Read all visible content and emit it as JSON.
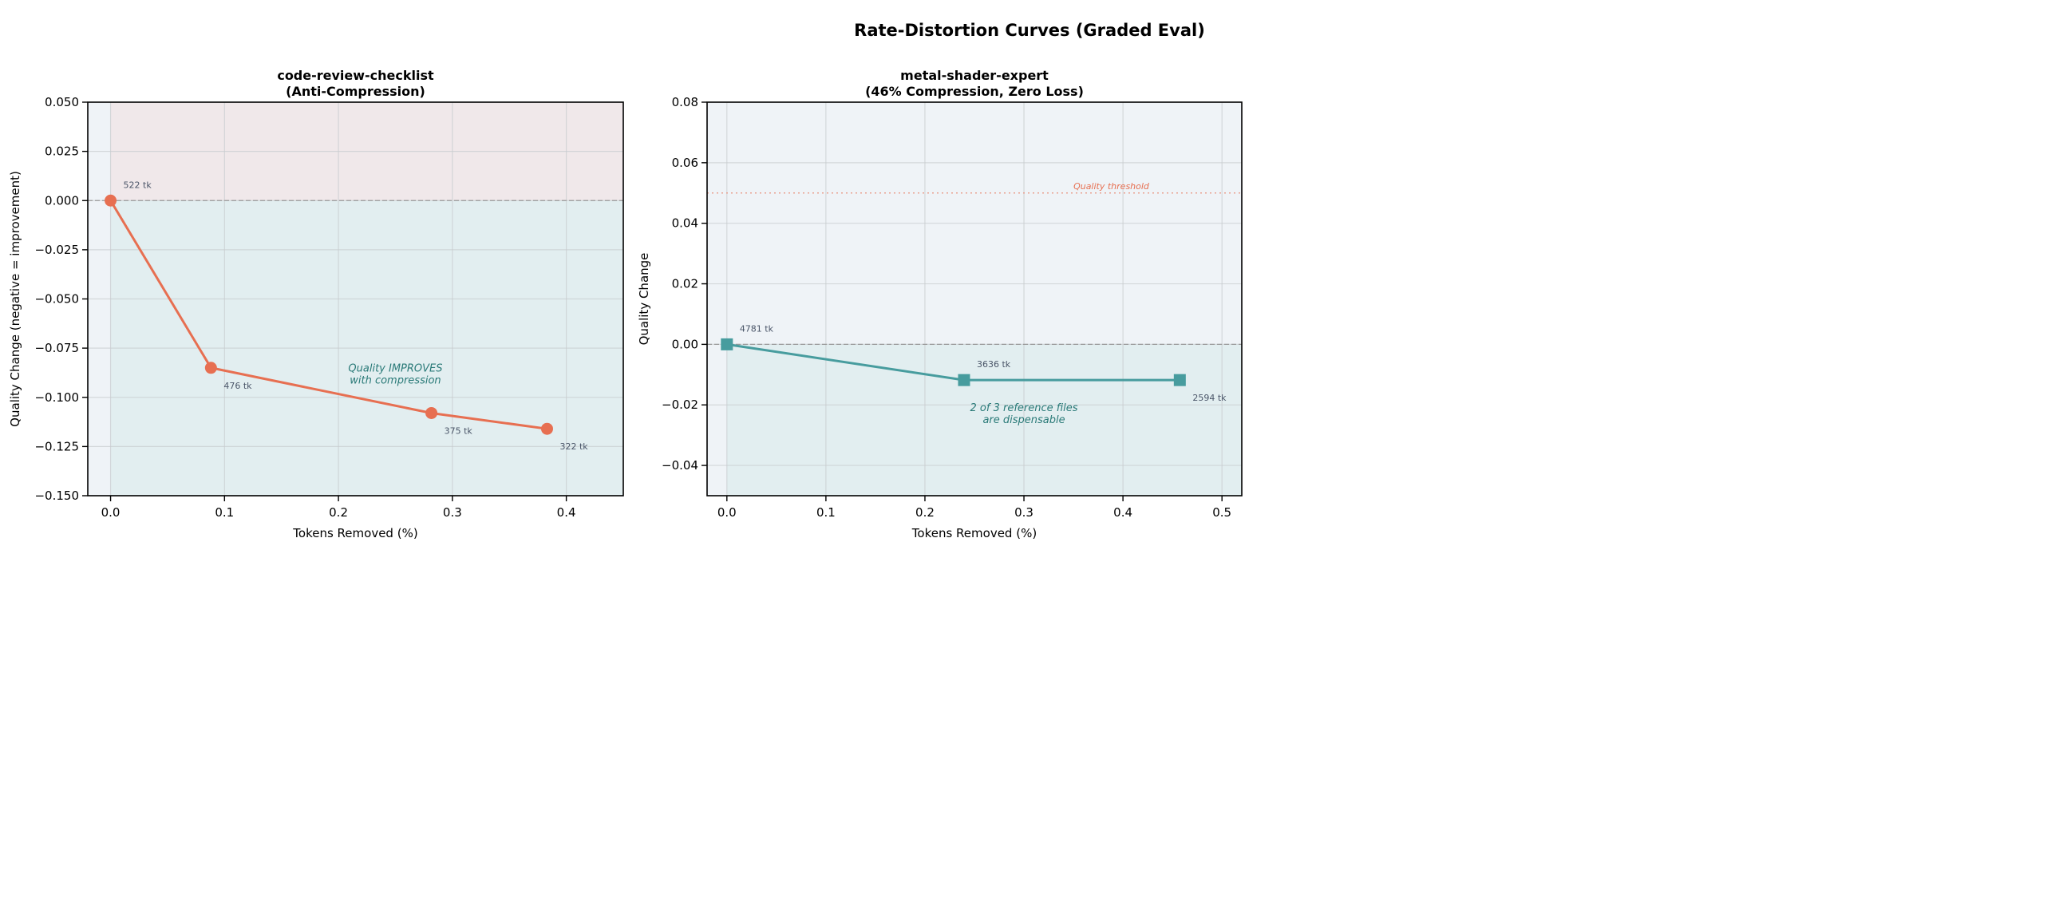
{
  "title": "Rate-Distortion Curves (Graded Eval)",
  "colors": {
    "left_line": "#e76f51",
    "right_line": "#479c9e",
    "worse_region": "#f0e8ea",
    "better_region": "#e2eef0",
    "axes_bg": "#eff3f7",
    "annotation": "#2a7a78",
    "label": "#4a5568",
    "threshold": "#e9a08f"
  },
  "chart_data": [
    {
      "type": "line",
      "title": "code-review-checklist\n(Anti-Compression)",
      "xlabel": "Tokens Removed (%)",
      "ylabel": "Quality Change (negative = improvement)",
      "xlim": [
        -0.02,
        0.45
      ],
      "ylim": [
        -0.15,
        0.05
      ],
      "xticks": [
        "0.0",
        "0.1",
        "0.2",
        "0.3",
        "0.4"
      ],
      "xtick_values": [
        0,
        0.1,
        0.2,
        0.3,
        0.4
      ],
      "yticks": [
        "0.050",
        "0.025",
        "0.000",
        "−0.025",
        "−0.050",
        "−0.075",
        "−0.100",
        "−0.125",
        "−0.150"
      ],
      "ytick_values": [
        0.05,
        0.025,
        0,
        -0.025,
        -0.05,
        -0.075,
        -0.1,
        -0.125,
        -0.15
      ],
      "grid": true,
      "marker": "circle",
      "x": [
        0,
        0.0881,
        0.2816,
        0.3831
      ],
      "y": [
        0,
        -0.085,
        -0.108,
        -0.116
      ],
      "point_labels": [
        "522 tk",
        "476 tk",
        "375 tk",
        "322 tk"
      ],
      "annotation": {
        "text": [
          "Quality IMPROVES",
          "with compression"
        ],
        "x": 0.25,
        "y": -0.087
      },
      "zero_line": 0
    },
    {
      "type": "line",
      "title": "metal-shader-expert\n(46% Compression, Zero Loss)",
      "xlabel": "Tokens Removed (%)",
      "ylabel": "Quality Change",
      "xlim": [
        -0.02,
        0.52
      ],
      "ylim": [
        -0.05,
        0.08
      ],
      "xticks": [
        "0.0",
        "0.1",
        "0.2",
        "0.3",
        "0.4",
        "0.5"
      ],
      "xtick_values": [
        0,
        0.1,
        0.2,
        0.3,
        0.4,
        0.5
      ],
      "yticks": [
        "0.08",
        "0.06",
        "0.04",
        "0.02",
        "0.00",
        "−0.02",
        "−0.04"
      ],
      "ytick_values": [
        0.08,
        0.06,
        0.04,
        0.02,
        0,
        -0.02,
        -0.04
      ],
      "grid": true,
      "marker": "square",
      "x": [
        0,
        0.2395,
        0.4574
      ],
      "y": [
        0,
        -0.0118,
        -0.0118
      ],
      "point_labels": [
        "4781 tk",
        "3636 tk",
        "2594 tk"
      ],
      "threshold": {
        "value": 0.05,
        "label": "Quality threshold"
      },
      "annotation": {
        "text": [
          "2 of 3 reference files",
          "are dispensable"
        ],
        "x": 0.3,
        "y": -0.022
      },
      "zero_line": 0
    }
  ]
}
